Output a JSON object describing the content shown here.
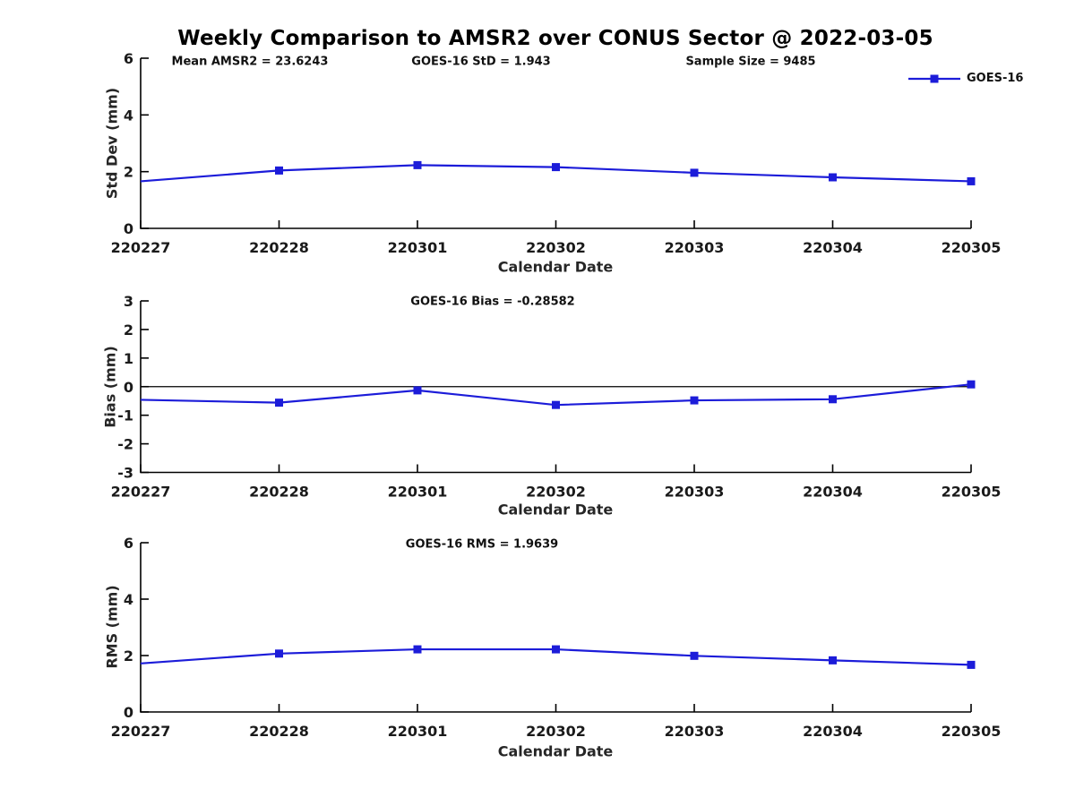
{
  "title": "Weekly Comparison to AMSR2 over CONUS Sector @ 2022-03-05",
  "legend": {
    "label": "GOES-16"
  },
  "colors": {
    "line": "#1c1cd9",
    "axis": "#000000",
    "zero_line": "#000000",
    "text": "#1a1a1a"
  },
  "chart_data": [
    {
      "type": "line",
      "name": "std-dev",
      "annotations": [
        "Mean AMSR2 = 23.6243",
        "GOES-16 StD = 1.943",
        "Sample Size = 9485"
      ],
      "categories": [
        "220227",
        "220228",
        "220301",
        "220302",
        "220303",
        "220304",
        "220305"
      ],
      "series": [
        {
          "name": "GOES-16",
          "values": [
            1.66,
            2.04,
            2.23,
            2.16,
            1.96,
            1.8,
            1.66
          ]
        }
      ],
      "xlabel": "Calendar Date",
      "ylabel": "Std Dev (mm)",
      "ylim": [
        0,
        6
      ],
      "yticks": [
        0,
        2,
        4,
        6
      ],
      "grid": false,
      "marker": "square",
      "legend_position": "top-right"
    },
    {
      "type": "line",
      "name": "bias",
      "annotations": [
        "GOES-16 Bias  = -0.28582"
      ],
      "categories": [
        "220227",
        "220228",
        "220301",
        "220302",
        "220303",
        "220304",
        "220305"
      ],
      "series": [
        {
          "name": "GOES-16",
          "values": [
            -0.46,
            -0.56,
            -0.13,
            -0.64,
            -0.48,
            -0.44,
            0.08
          ]
        }
      ],
      "xlabel": "Calendar Date",
      "ylabel": "Bias (mm)",
      "ylim": [
        -3,
        3
      ],
      "yticks": [
        -3,
        -2,
        -1,
        0,
        1,
        2,
        3
      ],
      "zero_line": true,
      "grid": false,
      "marker": "square"
    },
    {
      "type": "line",
      "name": "rms",
      "annotations": [
        "GOES-16 RMS = 1.9639"
      ],
      "categories": [
        "220227",
        "220228",
        "220301",
        "220302",
        "220303",
        "220304",
        "220305"
      ],
      "series": [
        {
          "name": "GOES-16",
          "values": [
            1.72,
            2.07,
            2.22,
            2.22,
            1.99,
            1.83,
            1.67
          ]
        }
      ],
      "xlabel": "Calendar Date",
      "ylabel": "RMS (mm)",
      "ylim": [
        0,
        6
      ],
      "yticks": [
        0,
        2,
        4,
        6
      ],
      "grid": false,
      "marker": "square"
    }
  ]
}
